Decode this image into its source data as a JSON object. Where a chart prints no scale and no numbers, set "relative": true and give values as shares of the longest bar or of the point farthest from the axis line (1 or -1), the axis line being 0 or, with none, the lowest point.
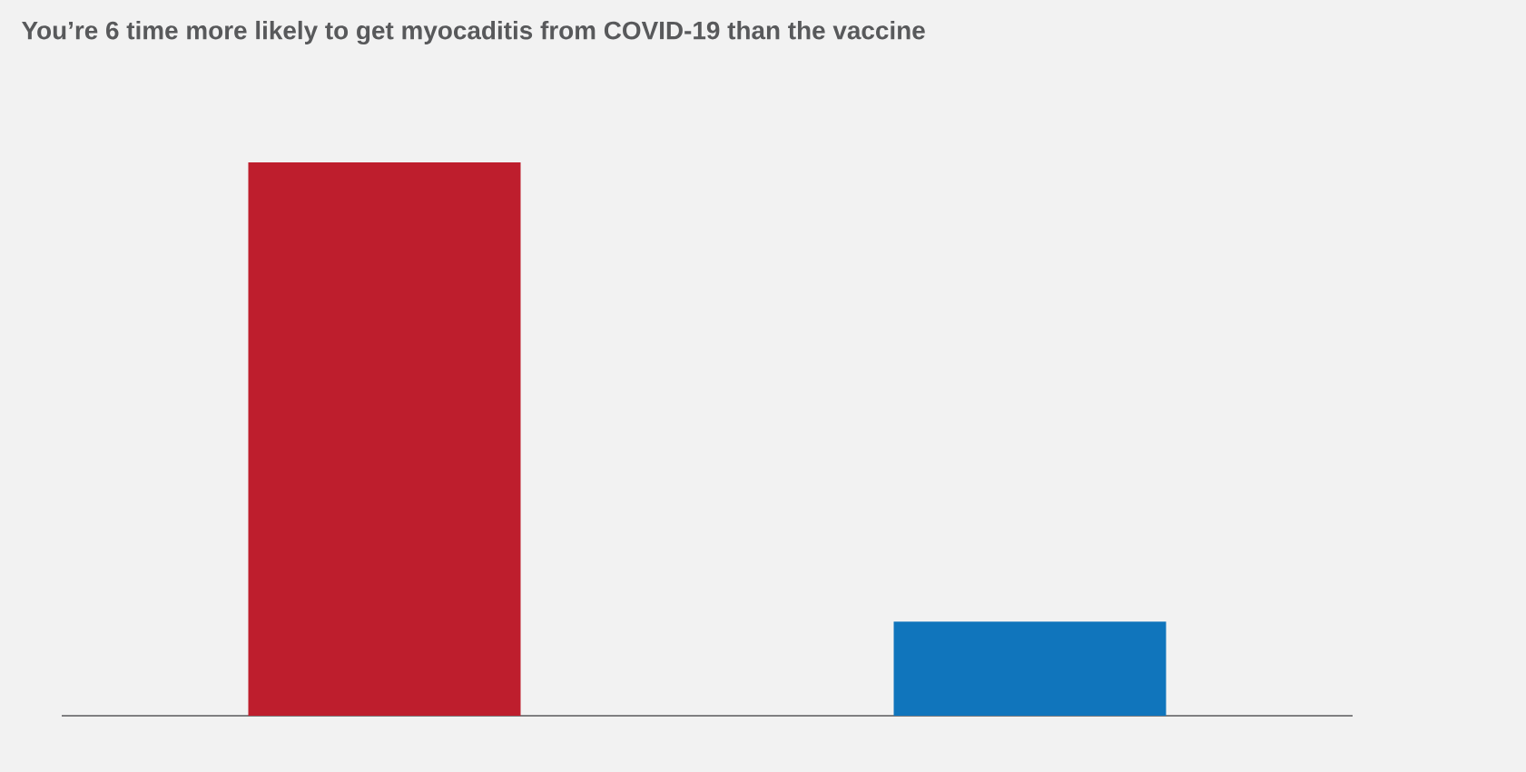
{
  "chart_data": {
    "type": "bar",
    "title": "You’re 6 time more likely to get myocaditis from COVID-19 than the vaccine",
    "relative": true,
    "categories": [
      null,
      null
    ],
    "values": [
      1,
      0.17
    ],
    "colors": [
      "#be1e2d",
      "#1075bc"
    ]
  }
}
